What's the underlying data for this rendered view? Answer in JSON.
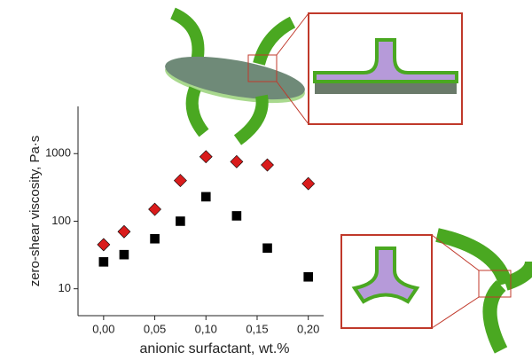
{
  "chart_data": {
    "type": "scatter",
    "xlabel": "anionic surfactant, wt.%",
    "ylabel": "zero-shear viscosity, Pa·s",
    "xlim": [
      -0.025,
      0.215
    ],
    "ylim": [
      4,
      5000
    ],
    "log_y": true,
    "xticks": [
      {
        "value": 0,
        "label": "0,00"
      },
      {
        "value": 0.05,
        "label": "0,05"
      },
      {
        "value": 0.1,
        "label": "0,10"
      },
      {
        "value": 0.15,
        "label": "0,15"
      },
      {
        "value": 0.2,
        "label": "0,20"
      }
    ],
    "yticks": [
      10,
      100,
      1000
    ],
    "series": [
      {
        "color": "#d91c1c",
        "marker": "diamond",
        "x": [
          0,
          0.02,
          0.05,
          0.075,
          0.1,
          0.13,
          0.16,
          0.2
        ],
        "values": [
          45,
          70,
          150,
          400,
          900,
          760,
          680,
          360
        ]
      },
      {
        "color": "#000000",
        "marker": "square",
        "x": [
          0,
          0.02,
          0.05,
          0.075,
          0.1,
          0.13,
          0.16,
          0.2
        ],
        "values": [
          25,
          32,
          55,
          100,
          230,
          120,
          40,
          15
        ]
      }
    ]
  }
}
